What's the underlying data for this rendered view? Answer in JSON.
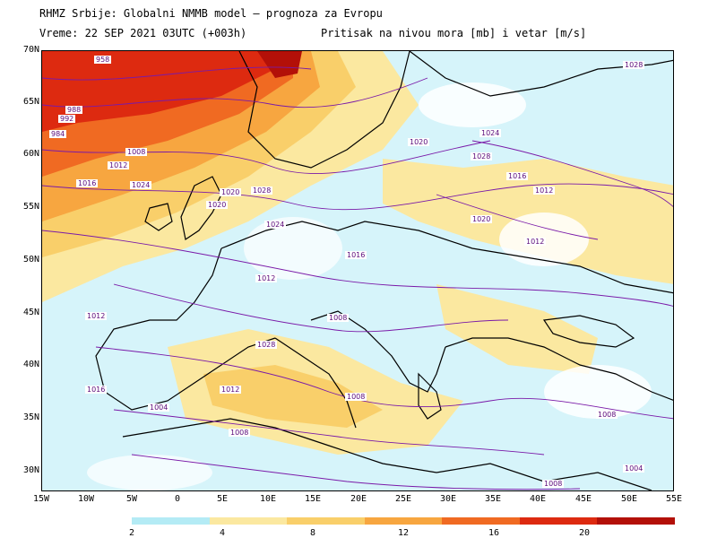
{
  "header": {
    "line1": "RHMZ Srbije: Globalni NMMB model — prognoza za Evropu",
    "line2": "Vreme: 22 SEP 2021 03UTC (+003h)",
    "line3": "Pritisak na nivou mora [mb] i vetar [m/s]"
  },
  "axes": {
    "lat_labels": [
      "70N",
      "65N",
      "60N",
      "55N",
      "50N",
      "45N",
      "40N",
      "35N",
      "30N"
    ],
    "lon_labels": [
      "15W",
      "10W",
      "5W",
      "0",
      "5E",
      "10E",
      "15E",
      "20E",
      "25E",
      "30E",
      "35E",
      "40E",
      "45E",
      "50E",
      "55E"
    ]
  },
  "colorbar": {
    "labels": [
      "2",
      "4",
      "8",
      "12",
      "16",
      "20"
    ],
    "colors": [
      "#b4ebf5",
      "#fbe8a0",
      "#f9cf6a",
      "#f7a640",
      "#f06a22",
      "#dd2a10",
      "#b31008"
    ]
  },
  "isobar_labels": [
    "958",
    "992",
    "988",
    "984",
    "1008",
    "1012",
    "1016",
    "1024",
    "1028",
    "1020",
    "1024",
    "1020",
    "1028",
    "1024",
    "1028",
    "1020",
    "1016",
    "1012",
    "1016",
    "1012",
    "1008",
    "1012",
    "1016",
    "1012",
    "1008",
    "1008",
    "1004",
    "1008",
    "1028",
    "1020",
    "1012",
    "1008",
    "1004"
  ],
  "colors": {
    "land_outline": "#000000",
    "isobar": "#7a1aa8",
    "background_calm": "#ffffff"
  }
}
